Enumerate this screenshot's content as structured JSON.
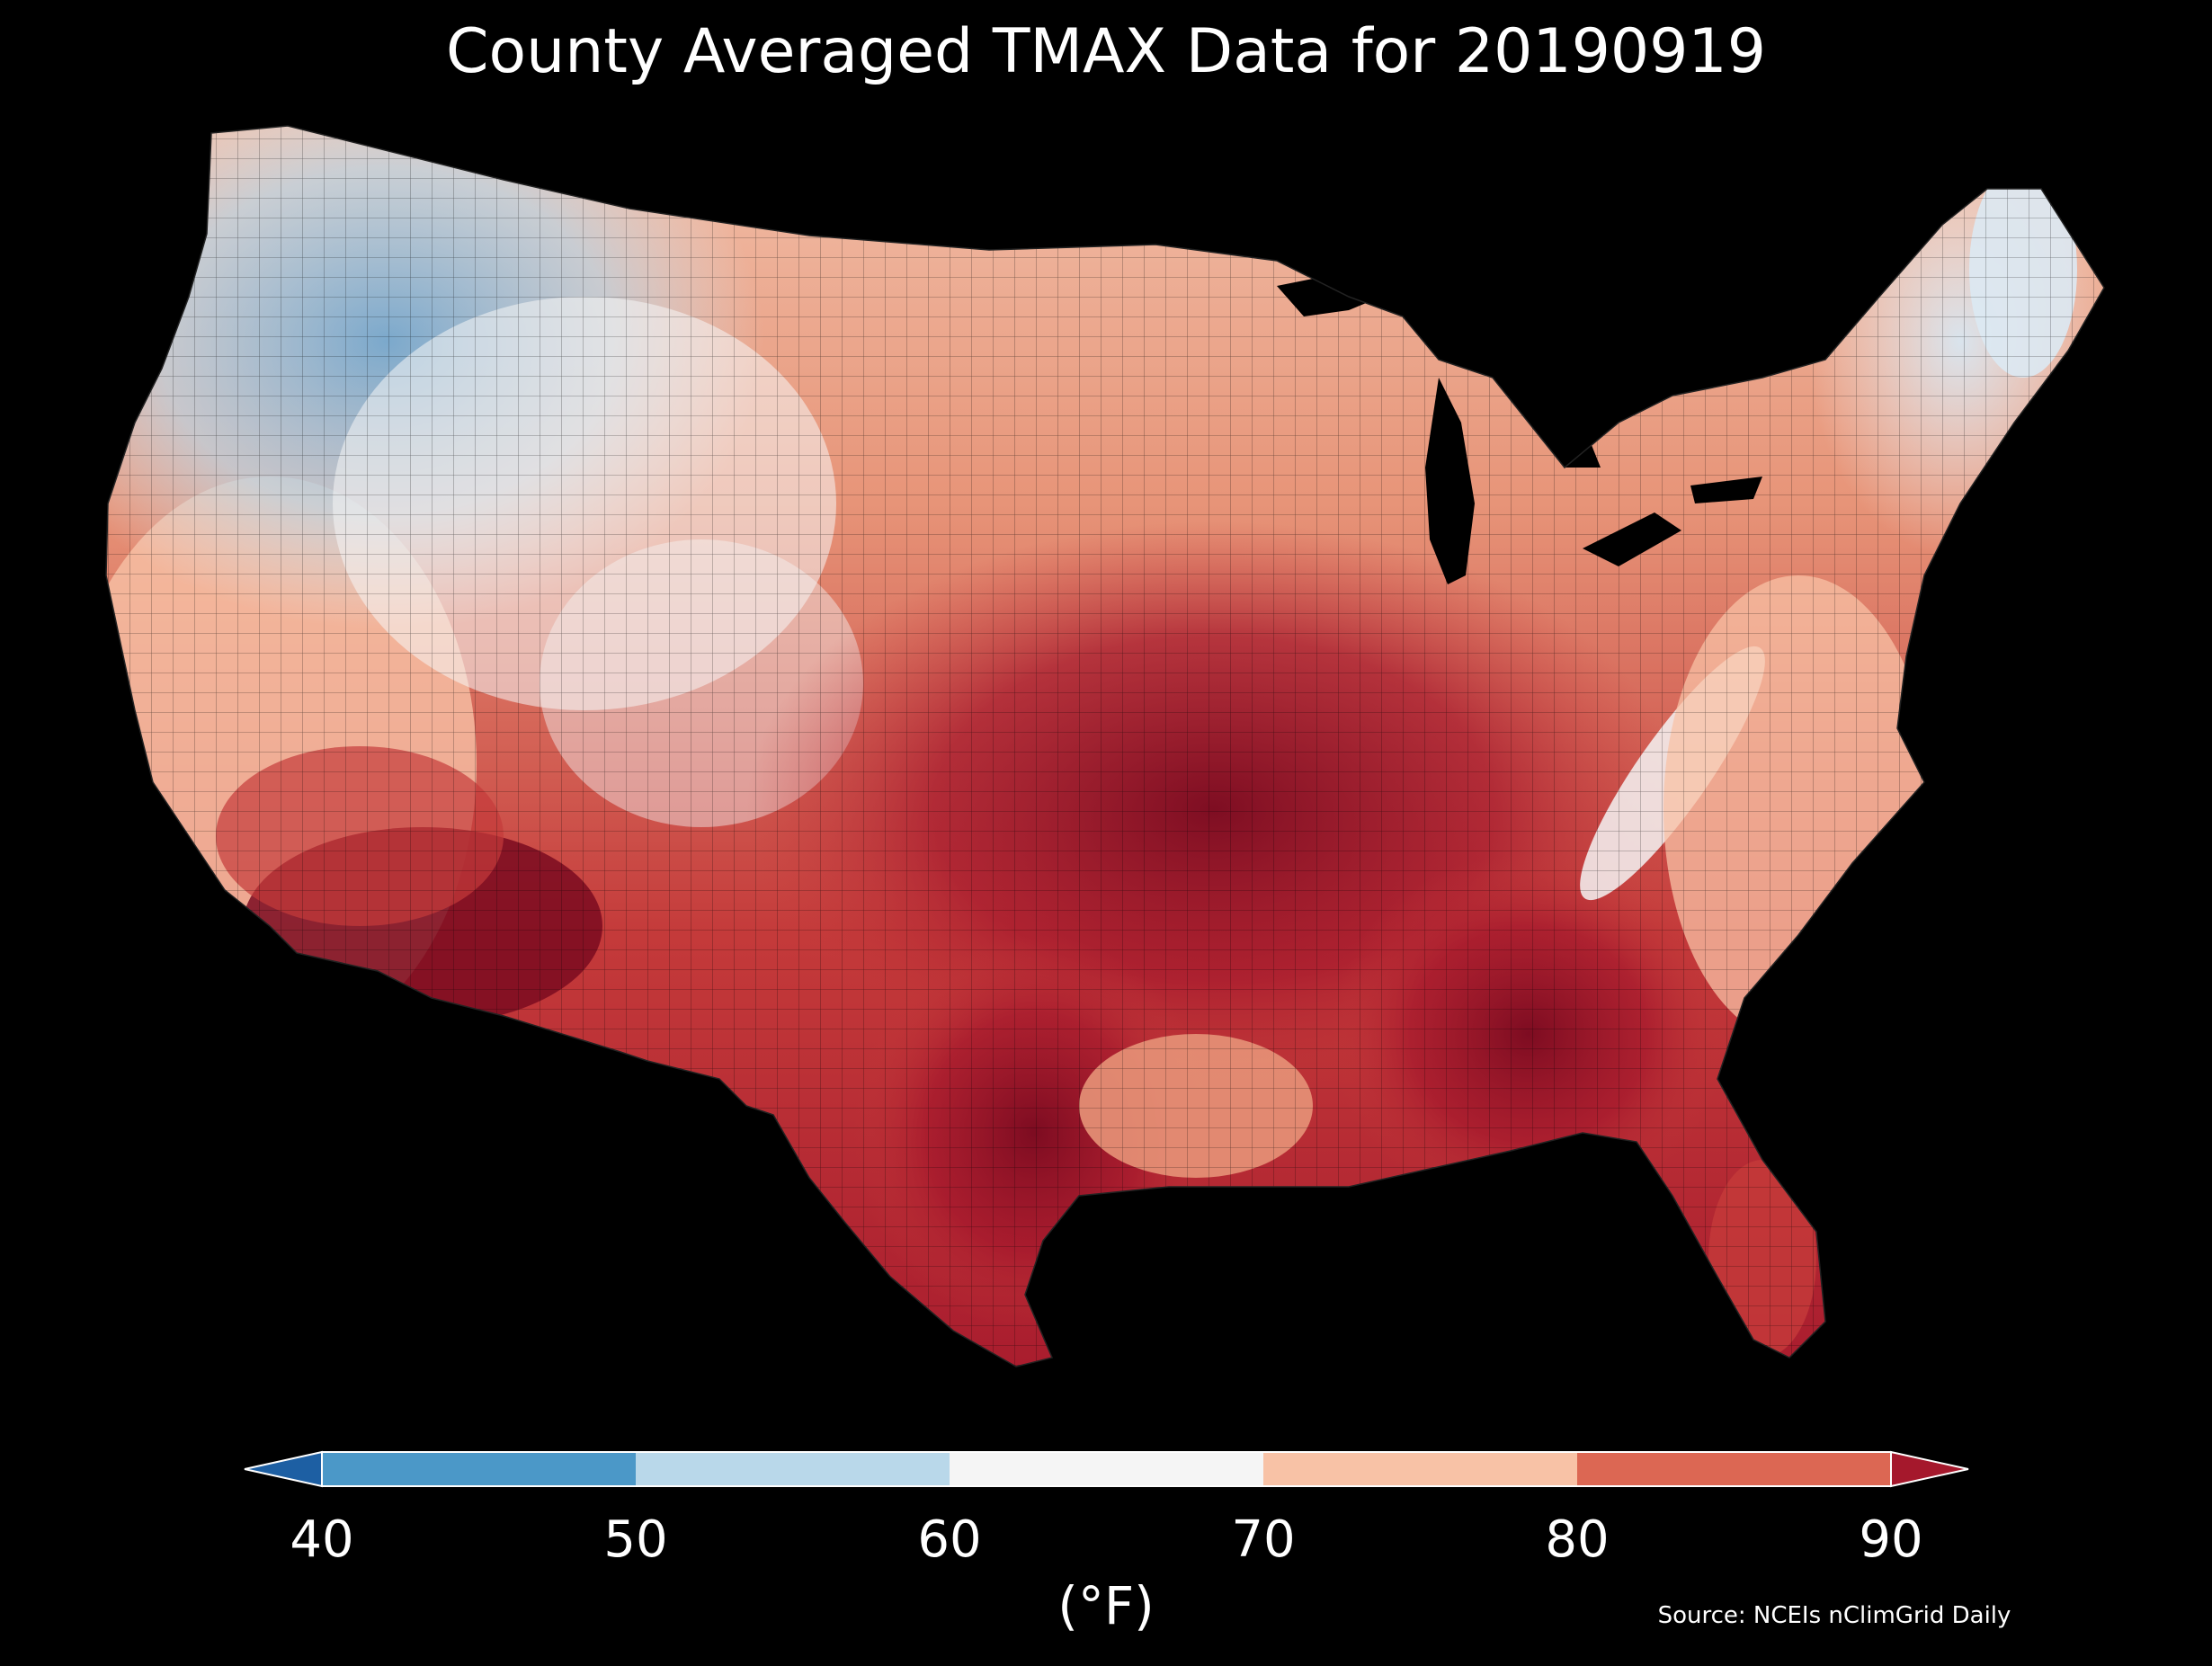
{
  "title": "County Averaged TMAX Data for 20190919",
  "colorbar": {
    "unit_label": "(°F)",
    "ticks": [
      "40",
      "50",
      "60",
      "70",
      "80",
      "90"
    ],
    "bins": [
      {
        "range": "<40",
        "color": "#1d5fa3"
      },
      {
        "range": "40-50",
        "color": "#4b98c8"
      },
      {
        "range": "50-60",
        "color": "#b9d8ea"
      },
      {
        "range": "60-70",
        "color": "#f5f5f5"
      },
      {
        "range": "70-80",
        "color": "#f8c2a6"
      },
      {
        "range": "80-90",
        "color": "#dc6753"
      },
      {
        "range": ">90",
        "color": "#a5182c"
      }
    ]
  },
  "source": "Source: NCEIs nClimGrid Daily"
}
